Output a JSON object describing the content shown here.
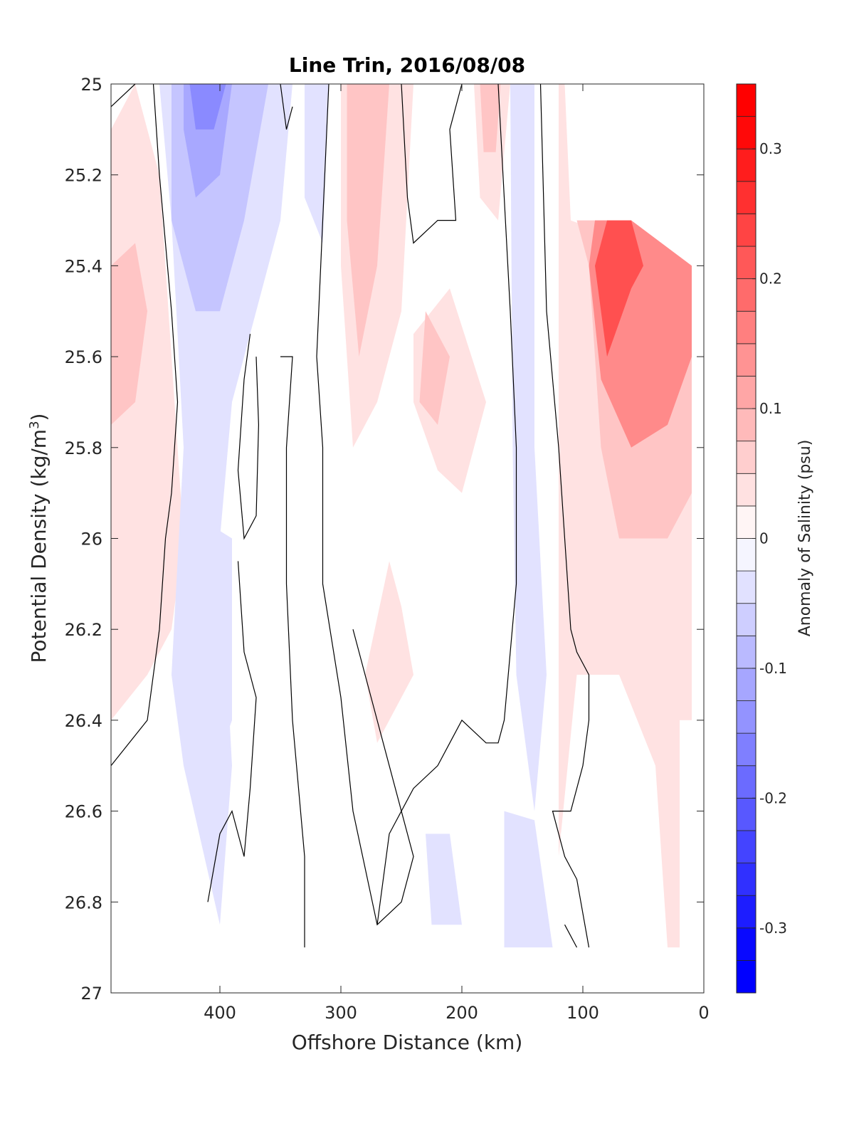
{
  "chart_data": {
    "type": "contour",
    "title": "Line Trin, 2016/08/08",
    "xlabel": "Offshore Distance (km)",
    "ylabel_main": "Potential Density (kg/m",
    "ylabel_sup": "3",
    "ylabel_end": ")",
    "colorbar_label": "Anomaly of Salinity (psu)",
    "xlim": [
      490,
      0
    ],
    "ylim": [
      27,
      25
    ],
    "y_reversed": true,
    "x_reversed": true,
    "xticks": [
      400,
      300,
      200,
      100,
      0
    ],
    "xtick_labels": [
      "400",
      "300",
      "200",
      "100",
      "0"
    ],
    "yticks": [
      25,
      25.2,
      25.4,
      25.6,
      25.8,
      26,
      26.2,
      26.4,
      26.6,
      26.8,
      27
    ],
    "ytick_labels": [
      "25",
      "25.2",
      "25.4",
      "25.6",
      "25.8",
      "26",
      "26.2",
      "26.4",
      "26.6",
      "26.8",
      "27"
    ],
    "colorbar": {
      "clim": [
        -0.35,
        0.35
      ],
      "levels": 28,
      "colormap": "blue-white-red",
      "ticks": [
        0.3,
        0.2,
        0.1,
        0,
        -0.1,
        -0.2,
        -0.3
      ],
      "tick_labels": [
        "0.3",
        "0.2",
        "0.1",
        "0",
        "-0.1",
        "-0.2",
        "-0.3"
      ]
    },
    "grid": false,
    "zero_contour_color": "#000000",
    "anomaly_regions": [
      {
        "value": 0.05,
        "polygon": [
          [
            490,
            25.1
          ],
          [
            470,
            25.0
          ],
          [
            450,
            25.2
          ],
          [
            440,
            25.6
          ],
          [
            430,
            26.0
          ],
          [
            440,
            26.2
          ],
          [
            460,
            26.3
          ],
          [
            490,
            26.4
          ]
        ]
      },
      {
        "value": 0.1,
        "polygon": [
          [
            490,
            25.4
          ],
          [
            470,
            25.35
          ],
          [
            460,
            25.5
          ],
          [
            470,
            25.7
          ],
          [
            490,
            25.75
          ]
        ]
      },
      {
        "value": -0.05,
        "polygon": [
          [
            450,
            25.0
          ],
          [
            340,
            25.0
          ],
          [
            350,
            25.3
          ],
          [
            390,
            25.7
          ],
          [
            400,
            26.0
          ],
          [
            390,
            26.5
          ],
          [
            400,
            26.85
          ],
          [
            430,
            26.5
          ],
          [
            440,
            26.3
          ],
          [
            430,
            25.8
          ],
          [
            440,
            25.3
          ]
        ]
      },
      {
        "value": -0.1,
        "polygon": [
          [
            440,
            25.0
          ],
          [
            360,
            25.0
          ],
          [
            380,
            25.3
          ],
          [
            400,
            25.5
          ],
          [
            420,
            25.5
          ],
          [
            440,
            25.3
          ]
        ]
      },
      {
        "value": -0.15,
        "polygon": [
          [
            430,
            25.0
          ],
          [
            390,
            25.0
          ],
          [
            400,
            25.2
          ],
          [
            420,
            25.25
          ],
          [
            430,
            25.1
          ]
        ]
      },
      {
        "value": -0.2,
        "polygon": [
          [
            425,
            25.0
          ],
          [
            395,
            25.0
          ],
          [
            405,
            25.1
          ],
          [
            420,
            25.1
          ]
        ]
      },
      {
        "value": -0.05,
        "polygon": [
          [
            420,
            25.95
          ],
          [
            390,
            26.0
          ],
          [
            390,
            26.4
          ],
          [
            410,
            26.55
          ],
          [
            420,
            26.2
          ]
        ]
      },
      {
        "value": -0.05,
        "polygon": [
          [
            330,
            25.0
          ],
          [
            310,
            25.0
          ],
          [
            315,
            25.35
          ],
          [
            330,
            25.25
          ]
        ]
      },
      {
        "value": 0.05,
        "polygon": [
          [
            300,
            25.0
          ],
          [
            240,
            25.0
          ],
          [
            250,
            25.5
          ],
          [
            270,
            25.7
          ],
          [
            290,
            25.8
          ],
          [
            300,
            25.4
          ]
        ]
      },
      {
        "value": 0.1,
        "polygon": [
          [
            295,
            25.0
          ],
          [
            260,
            25.0
          ],
          [
            270,
            25.4
          ],
          [
            285,
            25.6
          ],
          [
            295,
            25.3
          ]
        ]
      },
      {
        "value": 0.05,
        "polygon": [
          [
            240,
            25.55
          ],
          [
            210,
            25.45
          ],
          [
            180,
            25.7
          ],
          [
            200,
            25.9
          ],
          [
            220,
            25.85
          ],
          [
            240,
            25.7
          ]
        ]
      },
      {
        "value": 0.1,
        "polygon": [
          [
            230,
            25.5
          ],
          [
            210,
            25.6
          ],
          [
            220,
            25.75
          ],
          [
            235,
            25.7
          ]
        ]
      },
      {
        "value": 0.05,
        "polygon": [
          [
            190,
            25.0
          ],
          [
            160,
            25.0
          ],
          [
            170,
            25.3
          ],
          [
            185,
            25.25
          ]
        ]
      },
      {
        "value": 0.1,
        "polygon": [
          [
            185,
            25.0
          ],
          [
            168,
            25.0
          ],
          [
            172,
            25.15
          ],
          [
            182,
            25.15
          ]
        ]
      },
      {
        "value": 0.05,
        "polygon": [
          [
            260,
            26.05
          ],
          [
            280,
            26.3
          ],
          [
            270,
            26.45
          ],
          [
            240,
            26.3
          ],
          [
            250,
            26.15
          ]
        ]
      },
      {
        "value": -0.05,
        "polygon": [
          [
            160,
            25.0
          ],
          [
            140,
            25.0
          ],
          [
            140,
            25.8
          ],
          [
            130,
            26.3
          ],
          [
            140,
            26.6
          ],
          [
            155,
            26.3
          ],
          [
            158,
            25.8
          ]
        ]
      },
      {
        "value": -0.05,
        "polygon": [
          [
            230,
            26.65
          ],
          [
            210,
            26.65
          ],
          [
            200,
            26.85
          ],
          [
            225,
            26.85
          ]
        ]
      },
      {
        "value": -0.05,
        "polygon": [
          [
            165,
            26.6
          ],
          [
            140,
            26.62
          ],
          [
            125,
            26.9
          ],
          [
            165,
            26.9
          ]
        ]
      },
      {
        "value": 0.05,
        "polygon": [
          [
            115,
            25.0
          ],
          [
            120,
            25.0
          ],
          [
            120,
            26.7
          ],
          [
            105,
            26.3
          ],
          [
            70,
            26.3
          ],
          [
            55,
            26.4
          ],
          [
            40,
            26.5
          ],
          [
            30,
            26.9
          ],
          [
            20,
            26.9
          ],
          [
            20,
            26.4
          ],
          [
            10,
            26.4
          ],
          [
            10,
            25.4
          ],
          [
            110,
            25.3
          ]
        ]
      },
      {
        "value": 0.1,
        "polygon": [
          [
            105,
            25.3
          ],
          [
            95,
            25.4
          ],
          [
            85,
            25.8
          ],
          [
            70,
            26.0
          ],
          [
            30,
            26.0
          ],
          [
            10,
            25.9
          ],
          [
            10,
            25.4
          ],
          [
            60,
            25.3
          ],
          [
            90,
            25.3
          ]
        ]
      },
      {
        "value": 0.2,
        "polygon": [
          [
            95,
            25.4
          ],
          [
            85,
            25.65
          ],
          [
            60,
            25.8
          ],
          [
            30,
            25.75
          ],
          [
            10,
            25.6
          ],
          [
            10,
            25.4
          ],
          [
            60,
            25.3
          ],
          [
            90,
            25.3
          ]
        ]
      },
      {
        "value": 0.3,
        "polygon": [
          [
            90,
            25.4
          ],
          [
            80,
            25.6
          ],
          [
            60,
            25.45
          ],
          [
            50,
            25.4
          ],
          [
            60,
            25.3
          ],
          [
            80,
            25.3
          ]
        ]
      }
    ],
    "zero_contours": [
      [
        [
          490,
          25.05
        ],
        [
          470,
          25.0
        ]
      ],
      [
        [
          455,
          25.0
        ],
        [
          450,
          25.2
        ],
        [
          440,
          25.5
        ],
        [
          435,
          25.7
        ],
        [
          440,
          25.9
        ],
        [
          445,
          26.0
        ],
        [
          450,
          26.2
        ],
        [
          460,
          26.4
        ],
        [
          490,
          26.5
        ]
      ],
      [
        [
          350,
          25.0
        ],
        [
          345,
          25.1
        ],
        [
          340,
          25.05
        ]
      ],
      [
        [
          375,
          25.55
        ],
        [
          380,
          25.65
        ],
        [
          385,
          25.85
        ],
        [
          380,
          26.0
        ],
        [
          370,
          25.95
        ],
        [
          368,
          25.75
        ],
        [
          370,
          25.6
        ]
      ],
      [
        [
          410,
          26.8
        ],
        [
          400,
          26.65
        ],
        [
          390,
          26.6
        ],
        [
          380,
          26.7
        ],
        [
          375,
          26.55
        ],
        [
          370,
          26.35
        ],
        [
          380,
          26.25
        ],
        [
          385,
          26.05
        ]
      ],
      [
        [
          330,
          26.9
        ],
        [
          330,
          26.7
        ],
        [
          340,
          26.4
        ],
        [
          345,
          26.1
        ],
        [
          345,
          25.8
        ],
        [
          340,
          25.6
        ],
        [
          350,
          25.6
        ]
      ],
      [
        [
          320,
          25.6
        ],
        [
          315,
          25.8
        ],
        [
          315,
          26.1
        ],
        [
          300,
          26.35
        ],
        [
          290,
          26.6
        ],
        [
          270,
          26.85
        ],
        [
          250,
          26.8
        ],
        [
          240,
          26.7
        ],
        [
          260,
          26.5
        ],
        [
          280,
          26.3
        ],
        [
          290,
          26.2
        ]
      ],
      [
        [
          310,
          25.0
        ],
        [
          315,
          25.3
        ],
        [
          320,
          25.6
        ]
      ],
      [
        [
          250,
          25.0
        ],
        [
          245,
          25.25
        ],
        [
          240,
          25.35
        ],
        [
          220,
          25.3
        ],
        [
          205,
          25.3
        ],
        [
          210,
          25.1
        ],
        [
          200,
          25.0
        ]
      ],
      [
        [
          170,
          25.0
        ],
        [
          160,
          25.5
        ],
        [
          155,
          25.8
        ],
        [
          155,
          26.1
        ],
        [
          165,
          26.4
        ],
        [
          170,
          26.45
        ],
        [
          180,
          26.45
        ],
        [
          200,
          26.4
        ],
        [
          220,
          26.5
        ],
        [
          240,
          26.55
        ],
        [
          260,
          26.65
        ],
        [
          270,
          26.85
        ]
      ],
      [
        [
          135,
          25.0
        ],
        [
          130,
          25.5
        ],
        [
          120,
          25.8
        ],
        [
          110,
          26.2
        ],
        [
          105,
          26.25
        ],
        [
          95,
          26.3
        ],
        [
          95,
          26.4
        ],
        [
          100,
          26.5
        ],
        [
          110,
          26.6
        ],
        [
          125,
          26.6
        ],
        [
          115,
          26.7
        ],
        [
          105,
          26.75
        ],
        [
          95,
          26.9
        ]
      ],
      [
        [
          115,
          26.85
        ],
        [
          105,
          26.9
        ]
      ]
    ]
  }
}
